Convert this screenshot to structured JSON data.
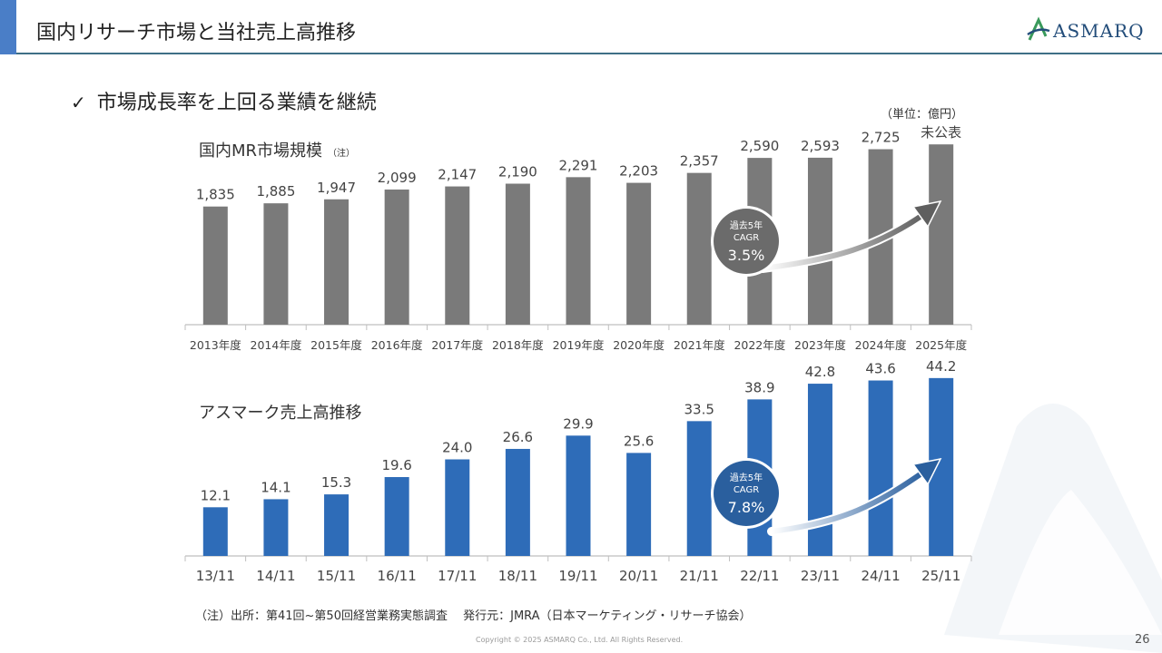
{
  "header": {
    "title": "国内リサーチ市場と当社売上高推移",
    "logo_text": "ASMARQ",
    "accent_color": "#4a7ec7"
  },
  "bullet": {
    "text": "市場成長率を上回る業績を継続"
  },
  "unit_label": "（単位：億円）",
  "footnote": "（注）出所：第41回~第50回経営業務実態調査　 発行元：JMRA（日本マーケティング・リサーチ協会）",
  "copyright": "Copyright © 2025 ASMARQ Co., Ltd. All Rights Reserved.",
  "page_number": "26",
  "chart_data": [
    {
      "type": "bar",
      "title": "国内MR市場規模",
      "title_note": "（注）",
      "categories": [
        "2013年度",
        "2014年度",
        "2015年度",
        "2016年度",
        "2017年度",
        "2018年度",
        "2019年度",
        "2020年度",
        "2021年度",
        "2022年度",
        "2023年度",
        "2024年度",
        "2025年度"
      ],
      "values": [
        1835,
        1885,
        1947,
        2099,
        2147,
        2190,
        2291,
        2203,
        2357,
        2590,
        2593,
        2725,
        2800
      ],
      "data_labels": [
        "1,835",
        "1,885",
        "1,947",
        "2,099",
        "2,147",
        "2,190",
        "2,291",
        "2,203",
        "2,357",
        "2,590",
        "2,593",
        "2,725",
        "未公表"
      ],
      "ylim": [
        0,
        3000
      ],
      "bar_color": "#7a7a7a",
      "cagr": {
        "line1": "過去5年",
        "line2": "CAGR",
        "value": "3.5%"
      },
      "bubble_color": "#6b6b6b"
    },
    {
      "type": "bar",
      "title": "アスマーク売上高推移",
      "categories": [
        "13/11",
        "14/11",
        "15/11",
        "16/11",
        "17/11",
        "18/11",
        "19/11",
        "20/11",
        "21/11",
        "22/11",
        "23/11",
        "24/11",
        "25/11"
      ],
      "values": [
        12.1,
        14.1,
        15.3,
        19.6,
        24.0,
        26.6,
        29.9,
        25.6,
        33.5,
        38.9,
        42.8,
        43.6,
        44.2
      ],
      "data_labels": [
        "12.1",
        "14.1",
        "15.3",
        "19.6",
        "24.0",
        "26.6",
        "29.9",
        "25.6",
        "33.5",
        "38.9",
        "42.8",
        "43.6",
        "44.2"
      ],
      "ylim": [
        0,
        48
      ],
      "bar_color": "#2e6cb8",
      "cagr": {
        "line1": "過去5年",
        "line2": "CAGR",
        "value": "7.8%"
      },
      "bubble_color": "#2a5f9e"
    }
  ]
}
